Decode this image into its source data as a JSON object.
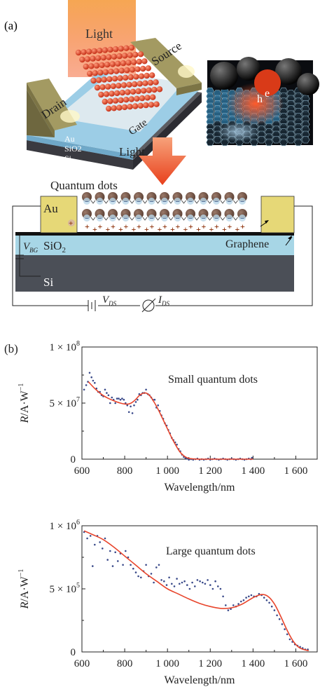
{
  "panel_a": {
    "label": "(a)",
    "device": {
      "light_top": "Light",
      "source": "Source",
      "drain": "Drain",
      "gate": "Gate",
      "layers": [
        "Au",
        "SiO2",
        "Si"
      ],
      "light_mid": "Light"
    },
    "inset": {
      "hole": "h",
      "electron": "e"
    },
    "cross_section": {
      "title": "Quantum dots",
      "au": "Au",
      "sio2": "SiO",
      "sio2_sub": "2",
      "si": "Si",
      "graphene": "Graphene",
      "vbg": "V",
      "vbg_sub": "BG",
      "vds": "V",
      "vds_sub": "DS",
      "ids": "I",
      "ids_sub": "DS"
    }
  },
  "panel_b": {
    "label": "(b)"
  },
  "chart_data": [
    {
      "type": "scatter",
      "title": "Small quantum dots",
      "xlabel": "Wavelength/nm",
      "ylabel": "R/A·W",
      "ylabel_sup": "−1",
      "xlim": [
        600,
        1700
      ],
      "ylim": [
        0,
        100000000.0
      ],
      "x_ticks": [
        600,
        800,
        1000,
        1200,
        1400,
        1600
      ],
      "x_tick_labels": [
        "600",
        "800",
        "1 000",
        "1 200",
        "1 400",
        "1 600"
      ],
      "y_ticks": [
        0,
        50000000.0,
        100000000.0
      ],
      "y_tick_labels": [
        {
          "mant": "0",
          "exp": ""
        },
        {
          "mant": "5 × 10",
          "exp": "7"
        },
        {
          "mant": "1 × 10",
          "exp": "8"
        }
      ],
      "fit_color": "#e8452c",
      "point_color": "#3a4a8a",
      "series": [
        {
          "points": [
            [
              610,
              62000000.0
            ],
            [
              620,
              66000000.0
            ],
            [
              628,
              69000000.0
            ],
            [
              636,
              77000000.0
            ],
            [
              645,
              73000000.0
            ],
            [
              652,
              70000000.0
            ],
            [
              660,
              68000000.0
            ],
            [
              668,
              63000000.0
            ],
            [
              676,
              60000000.0
            ],
            [
              684,
              60000000.0
            ],
            [
              692,
              57000000.0
            ],
            [
              700,
              56000000.0
            ],
            [
              708,
              62000000.0
            ],
            [
              716,
              59000000.0
            ],
            [
              724,
              57000000.0
            ],
            [
              732,
              50000000.0
            ],
            [
              740,
              55000000.0
            ],
            [
              748,
              53000000.0
            ],
            [
              756,
              50000000.0
            ],
            [
              764,
              54000000.0
            ],
            [
              772,
              54000000.0
            ],
            [
              780,
              53000000.0
            ],
            [
              788,
              54000000.0
            ],
            [
              796,
              53000000.0
            ],
            [
              804,
              50000000.0
            ],
            [
              812,
              48000000.0
            ],
            [
              820,
              42000000.0
            ],
            [
              828,
              47000000.0
            ],
            [
              836,
              41000000.0
            ],
            [
              844,
              48000000.0
            ],
            [
              852,
              51000000.0
            ],
            [
              860,
              53000000.0
            ],
            [
              868,
              58000000.0
            ],
            [
              876,
              57000000.0
            ],
            [
              884,
              59000000.0
            ],
            [
              892,
              59000000.0
            ],
            [
              900,
              62000000.0
            ],
            [
              908,
              58000000.0
            ],
            [
              916,
              57000000.0
            ],
            [
              924,
              55000000.0
            ],
            [
              932,
              53000000.0
            ],
            [
              940,
              53000000.0
            ],
            [
              948,
              46000000.0
            ],
            [
              956,
              48000000.0
            ],
            [
              964,
              43000000.0
            ],
            [
              972,
              39000000.0
            ],
            [
              980,
              36000000.0
            ],
            [
              988,
              32000000.0
            ],
            [
              996,
              30000000.0
            ],
            [
              1004,
              26000000.0
            ],
            [
              1012,
              23000000.0
            ],
            [
              1020,
              19000000.0
            ],
            [
              1028,
              17000000.0
            ],
            [
              1036,
              15000000.0
            ],
            [
              1044,
              13000000.0
            ],
            [
              1052,
              9000000.0
            ],
            [
              1060,
              7000000.0
            ],
            [
              1068,
              4000000.0
            ],
            [
              1076,
              2000000.0
            ],
            [
              1084,
              1000000.0
            ],
            [
              1092,
              500000.0
            ],
            [
              1100,
              -500000.0
            ],
            [
              1110,
              0
            ],
            [
              1120,
              -500000.0
            ],
            [
              1130,
              0
            ],
            [
              1140,
              500000.0
            ],
            [
              1150,
              -500000.0
            ],
            [
              1160,
              0
            ],
            [
              1170,
              -500000.0
            ],
            [
              1180,
              0
            ],
            [
              1190,
              500000.0
            ],
            [
              1200,
              -500000.0
            ],
            [
              1210,
              0
            ],
            [
              1220,
              500000.0
            ],
            [
              1230,
              0
            ],
            [
              1240,
              -500000.0
            ],
            [
              1250,
              0
            ],
            [
              1260,
              500000.0
            ],
            [
              1270,
              0
            ],
            [
              1280,
              -500000.0
            ],
            [
              1290,
              0
            ],
            [
              1300,
              500000.0
            ],
            [
              1310,
              0
            ],
            [
              1320,
              -500000.0
            ],
            [
              1330,
              0
            ],
            [
              1340,
              500000.0
            ],
            [
              1350,
              0
            ],
            [
              1360,
              -500000.0
            ],
            [
              1370,
              0
            ],
            [
              1380,
              500000.0
            ],
            [
              1390,
              0
            ],
            [
              1395,
              1200000.0
            ]
          ]
        }
      ],
      "fit": [
        [
          630,
          69000000.0
        ],
        [
          660,
          63000000.0
        ],
        [
          690,
          58000000.0
        ],
        [
          720,
          54500000.0
        ],
        [
          750,
          52000000.0
        ],
        [
          780,
          50000000.0
        ],
        [
          810,
          49000000.0
        ],
        [
          830,
          50000000.0
        ],
        [
          850,
          53000000.0
        ],
        [
          870,
          57000000.0
        ],
        [
          890,
          59000000.0
        ],
        [
          905,
          58500000.0
        ],
        [
          920,
          56000000.0
        ],
        [
          940,
          50000000.0
        ],
        [
          960,
          43000000.0
        ],
        [
          980,
          35000000.0
        ],
        [
          1000,
          27000000.0
        ],
        [
          1020,
          19000000.0
        ],
        [
          1040,
          12000000.0
        ],
        [
          1060,
          6000000.0
        ],
        [
          1080,
          2500000.0
        ],
        [
          1100,
          700000.0
        ],
        [
          1130,
          150000.0
        ],
        [
          1160,
          0
        ],
        [
          1200,
          0
        ],
        [
          1300,
          0
        ],
        [
          1400,
          0
        ]
      ]
    },
    {
      "type": "scatter",
      "title": "Large quantum dots",
      "xlabel": "Wavelength/nm",
      "ylabel": "R/A·W",
      "ylabel_sup": "−1",
      "xlim": [
        600,
        1700
      ],
      "ylim": [
        0,
        1000000.0
      ],
      "x_ticks": [
        600,
        800,
        1000,
        1200,
        1400,
        1600
      ],
      "x_tick_labels": [
        "600",
        "800",
        "1 000",
        "1 200",
        "1 400",
        "1 600"
      ],
      "y_ticks": [
        0,
        500000.0,
        1000000.0
      ],
      "y_tick_labels": [
        {
          "mant": "0",
          "exp": ""
        },
        {
          "mant": "5 × 10",
          "exp": "5"
        },
        {
          "mant": "1 × 10",
          "exp": "6"
        }
      ],
      "fit_color": "#e8452c",
      "point_color": "#3a4a8a",
      "series": [
        {
          "points": [
            [
              610,
              950000.0
            ],
            [
              625,
              900000.0
            ],
            [
              640,
              920000.0
            ],
            [
              650,
              680000.0
            ],
            [
              660,
              850000.0
            ],
            [
              672,
              920000.0
            ],
            [
              684,
              870000.0
            ],
            [
              696,
              820000.0
            ],
            [
              708,
              900000.0
            ],
            [
              720,
              730000.0
            ],
            [
              732,
              800000.0
            ],
            [
              744,
              680000.0
            ],
            [
              756,
              790000.0
            ],
            [
              768,
              720000.0
            ],
            [
              780,
              780000.0
            ],
            [
              792,
              690000.0
            ],
            [
              804,
              800000.0
            ],
            [
              816,
              750000.0
            ],
            [
              828,
              690000.0
            ],
            [
              840,
              660000.0
            ],
            [
              852,
              630000.0
            ],
            [
              864,
              600000.0
            ],
            [
              876,
              590000.0
            ],
            [
              888,
              640000.0
            ],
            [
              900,
              690000.0
            ],
            [
              912,
              600000.0
            ],
            [
              924,
              620000.0
            ],
            [
              936,
              550000.0
            ],
            [
              948,
              670000.0
            ],
            [
              960,
              690000.0
            ],
            [
              972,
              570000.0
            ],
            [
              984,
              560000.0
            ],
            [
              996,
              530000.0
            ],
            [
              1008,
              590000.0
            ],
            [
              1020,
              540000.0
            ],
            [
              1032,
              520000.0
            ],
            [
              1044,
              580000.0
            ],
            [
              1056,
              540000.0
            ],
            [
              1068,
              550000.0
            ],
            [
              1080,
              560000.0
            ],
            [
              1092,
              530000.0
            ],
            [
              1104,
              500000.0
            ],
            [
              1116,
              550000.0
            ],
            [
              1128,
              520000.0
            ],
            [
              1140,
              570000.0
            ],
            [
              1152,
              560000.0
            ],
            [
              1164,
              550000.0
            ],
            [
              1176,
              540000.0
            ],
            [
              1188,
              570000.0
            ],
            [
              1200,
              530000.0
            ],
            [
              1212,
              500000.0
            ],
            [
              1224,
              560000.0
            ],
            [
              1236,
              520000.0
            ],
            [
              1248,
              500000.0
            ],
            [
              1260,
              440000.0
            ],
            [
              1272,
              370000.0
            ],
            [
              1284,
              330000.0
            ],
            [
              1296,
              340000.0
            ],
            [
              1308,
              370000.0
            ],
            [
              1320,
              360000.0
            ],
            [
              1332,
              380000.0
            ],
            [
              1344,
              400000.0
            ],
            [
              1356,
              410000.0
            ],
            [
              1368,
              430000.0
            ],
            [
              1380,
              440000.0
            ],
            [
              1392,
              450000.0
            ],
            [
              1404,
              440000.0
            ],
            [
              1416,
              440000.0
            ],
            [
              1428,
              460000.0
            ],
            [
              1440,
              450000.0
            ],
            [
              1452,
              430000.0
            ],
            [
              1464,
              410000.0
            ],
            [
              1476,
              390000.0
            ],
            [
              1488,
              360000.0
            ],
            [
              1500,
              330000.0
            ],
            [
              1512,
              290000.0
            ],
            [
              1524,
              260000.0
            ],
            [
              1536,
              220000.0
            ],
            [
              1548,
              180000.0
            ],
            [
              1560,
              140000.0
            ],
            [
              1572,
              100000.0
            ],
            [
              1584,
              80000.0
            ],
            [
              1596,
              60000.0
            ],
            [
              1608,
              50000.0
            ],
            [
              1620,
              40000.0
            ],
            [
              1632,
              30000.0
            ],
            [
              1644,
              20000.0
            ],
            [
              1656,
              20000.0
            ]
          ]
        }
      ],
      "fit": [
        [
          610,
          960000.0
        ],
        [
          650,
          930000.0
        ],
        [
          700,
          890000.0
        ],
        [
          750,
          830000.0
        ],
        [
          800,
          760000.0
        ],
        [
          850,
          690000.0
        ],
        [
          900,
          620000.0
        ],
        [
          950,
          560000.0
        ],
        [
          1000,
          500000.0
        ],
        [
          1050,
          460000.0
        ],
        [
          1100,
          420000.0
        ],
        [
          1150,
          385000.0
        ],
        [
          1200,
          360000.0
        ],
        [
          1250,
          345000.0
        ],
        [
          1300,
          350000.0
        ],
        [
          1350,
          380000.0
        ],
        [
          1400,
          430000.0
        ],
        [
          1440,
          455000.0
        ],
        [
          1470,
          440000.0
        ],
        [
          1500,
          380000.0
        ],
        [
          1530,
          280000.0
        ],
        [
          1560,
          170000.0
        ],
        [
          1590,
          80000.0
        ],
        [
          1620,
          30000.0
        ],
        [
          1660,
          10000.0
        ]
      ]
    }
  ]
}
